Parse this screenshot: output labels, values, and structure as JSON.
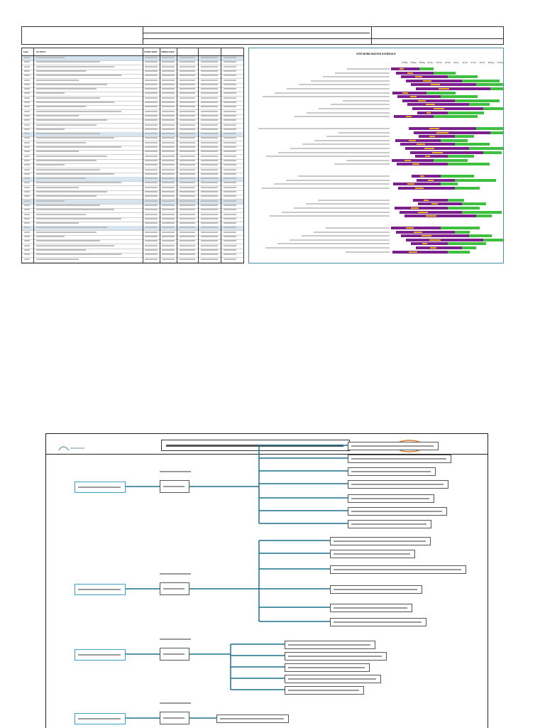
{
  "header": {
    "company_line": "",
    "project_line": "",
    "client_label": "",
    "doc_no": ""
  },
  "schedule_table": {
    "columns": [
      "S.No.",
      "ACTIVITY",
      "START DATE",
      "FINISH DATE",
      "",
      "",
      ""
    ],
    "rows": []
  },
  "gantt": {
    "title": "SITE MOBILISATION SCHEDULE",
    "date_ticks": [
      "10-May",
      "19-May",
      "28-May",
      "06-Jun",
      "15-Jun",
      "24-Jun",
      "03-Jul",
      "12-Jul",
      "21-Jul",
      "30-Jul",
      "08-Aug",
      "17-Aug"
    ],
    "colors": {
      "planned": "#7a1f8c",
      "actual": "#e0b020",
      "progress": "#3fbf3f"
    },
    "footer_note": ""
  },
  "mindmap": {
    "title": "",
    "logo_left": "",
    "logo_right": "",
    "branch_color": "#1f6e8c",
    "branches": [
      {
        "label": "",
        "sub": "",
        "children": [
          "",
          "",
          "",
          "",
          "",
          "",
          ""
        ]
      },
      {
        "label": "",
        "sub": "",
        "children": [
          "",
          "",
          "",
          "",
          "",
          ""
        ]
      },
      {
        "label": "",
        "sub": "",
        "children": [
          "",
          "",
          "",
          "",
          ""
        ]
      },
      {
        "label": "",
        "sub": "",
        "children": [
          ""
        ]
      }
    ]
  }
}
